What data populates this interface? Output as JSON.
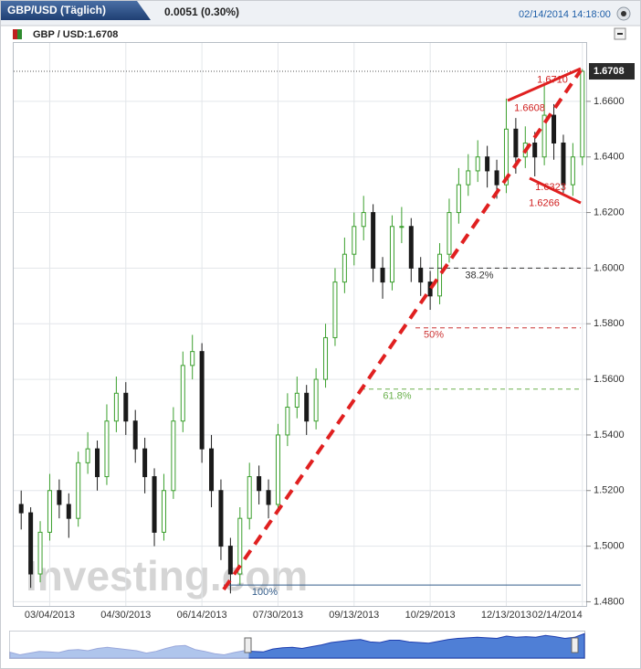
{
  "header": {
    "title": "GBP/USD (Täglich)",
    "change": "0.0051 (0.30%)",
    "timestamp": "02/14/2014 14:18:00"
  },
  "chart_data": {
    "type": "candlestick",
    "legend": "GBP / USD:1.6708",
    "watermark": "Investing.com",
    "categories": [
      null,
      null,
      null,
      "03/04/2013",
      null,
      null,
      null,
      null,
      null,
      null,
      null,
      "04/30/2013",
      null,
      null,
      null,
      null,
      null,
      null,
      null,
      "06/14/2013",
      null,
      null,
      null,
      null,
      null,
      null,
      null,
      "07/30/2013",
      null,
      null,
      null,
      null,
      null,
      null,
      null,
      "09/13/2013",
      null,
      null,
      null,
      null,
      null,
      null,
      null,
      "10/29/2013",
      null,
      null,
      null,
      null,
      null,
      null,
      null,
      "12/13/2013",
      null,
      null,
      null,
      null,
      null,
      null,
      null,
      "02/14/2014"
    ],
    "open": [
      1.515,
      1.512,
      1.49,
      1.505,
      1.52,
      1.515,
      1.51,
      1.53,
      1.535,
      1.525,
      1.545,
      1.555,
      1.545,
      1.535,
      1.525,
      1.505,
      1.52,
      1.545,
      1.565,
      1.57,
      1.535,
      1.52,
      1.5,
      1.49,
      1.51,
      1.525,
      1.52,
      1.515,
      1.54,
      1.55,
      1.555,
      1.545,
      1.56,
      1.575,
      1.595,
      1.605,
      1.615,
      1.62,
      1.6,
      1.595,
      1.615,
      1.615,
      1.6,
      1.595,
      1.59,
      1.605,
      1.62,
      1.63,
      1.635,
      1.64,
      1.635,
      1.63,
      1.65,
      1.64,
      1.645,
      1.64,
      1.655,
      1.645,
      1.63,
      1.64
    ],
    "high": [
      1.52,
      1.514,
      1.509,
      1.526,
      1.524,
      1.519,
      1.534,
      1.541,
      1.538,
      1.551,
      1.561,
      1.559,
      1.549,
      1.539,
      1.528,
      1.526,
      1.55,
      1.57,
      1.576,
      1.573,
      1.54,
      1.524,
      1.503,
      1.514,
      1.53,
      1.529,
      1.524,
      1.544,
      1.555,
      1.561,
      1.558,
      1.564,
      1.58,
      1.6,
      1.611,
      1.62,
      1.626,
      1.623,
      1.604,
      1.619,
      1.622,
      1.618,
      1.604,
      1.599,
      1.609,
      1.625,
      1.636,
      1.641,
      1.646,
      1.644,
      1.639,
      1.661,
      1.654,
      1.651,
      1.649,
      1.666,
      1.659,
      1.648,
      1.645,
      1.6716
    ],
    "low": [
      1.506,
      1.485,
      1.487,
      1.502,
      1.51,
      1.503,
      1.507,
      1.526,
      1.52,
      1.522,
      1.541,
      1.54,
      1.53,
      1.519,
      1.5,
      1.502,
      1.517,
      1.541,
      1.56,
      1.53,
      1.514,
      1.495,
      1.483,
      1.486,
      1.506,
      1.515,
      1.51,
      1.512,
      1.536,
      1.546,
      1.54,
      1.542,
      1.557,
      1.572,
      1.591,
      1.601,
      1.61,
      1.595,
      1.589,
      1.592,
      1.609,
      1.595,
      1.59,
      1.585,
      1.587,
      1.602,
      1.616,
      1.626,
      1.631,
      1.629,
      1.625,
      1.627,
      1.634,
      1.636,
      1.633,
      1.637,
      1.639,
      1.627,
      1.626,
      1.637
    ],
    "close": [
      1.512,
      1.49,
      1.505,
      1.52,
      1.515,
      1.51,
      1.53,
      1.535,
      1.525,
      1.545,
      1.555,
      1.545,
      1.535,
      1.525,
      1.505,
      1.52,
      1.545,
      1.565,
      1.57,
      1.535,
      1.52,
      1.5,
      1.49,
      1.51,
      1.525,
      1.52,
      1.515,
      1.54,
      1.55,
      1.555,
      1.545,
      1.56,
      1.575,
      1.595,
      1.605,
      1.615,
      1.62,
      1.6,
      1.595,
      1.615,
      1.615,
      1.6,
      1.595,
      1.59,
      1.605,
      1.62,
      1.63,
      1.635,
      1.64,
      1.635,
      1.63,
      1.65,
      1.64,
      1.645,
      1.64,
      1.655,
      1.645,
      1.63,
      1.64,
      1.6708
    ],
    "up_color": "#3a9f2c",
    "down_color": "#1a1a1a",
    "ylim": [
      1.4785,
      1.681
    ],
    "yticks": [
      {
        "value": 1.48,
        "label": "1.4800"
      },
      {
        "value": 1.5,
        "label": "1.5000"
      },
      {
        "value": 1.52,
        "label": "1.5200"
      },
      {
        "value": 1.54,
        "label": "1.5400"
      },
      {
        "value": 1.56,
        "label": "1.5600"
      },
      {
        "value": 1.58,
        "label": "1.5800"
      },
      {
        "value": 1.6,
        "label": "1.6000"
      },
      {
        "value": 1.62,
        "label": "1.6200"
      },
      {
        "value": 1.64,
        "label": "1.6400"
      },
      {
        "value": 1.66,
        "label": "1.6600"
      }
    ],
    "grid": true,
    "current_price": {
      "value": 1.6708,
      "label": "1.6708"
    },
    "fib_levels": [
      {
        "label": "38.2%",
        "price": 1.6,
        "color": "#333333"
      },
      {
        "label": "50%",
        "price": 1.5785,
        "color": "#cc3333"
      },
      {
        "label": "61.8%",
        "price": 1.5565,
        "color": "#6ab04c"
      },
      {
        "label": "100%",
        "price": 1.486,
        "color": "#335c8a"
      }
    ],
    "price_annotations": [
      {
        "value": 1.671,
        "label": "1.6710"
      },
      {
        "value": 1.6608,
        "label": "1.6608"
      },
      {
        "value": 1.6323,
        "label": "1.6323"
      },
      {
        "value": 1.6266,
        "label": "1.6266"
      }
    ]
  }
}
